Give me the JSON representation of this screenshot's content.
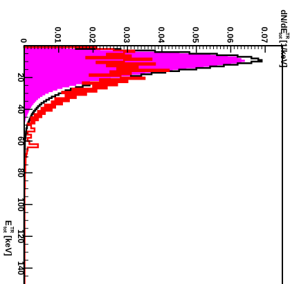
{
  "chart_data": {
    "type": "histogram",
    "orientation": "rotated-90",
    "title": "",
    "x_axis": {
      "label": "E_TR^tot [keV]",
      "label_main": "E",
      "label_sup": "tot",
      "label_sub": "TR",
      "label_unit": "[keV]",
      "range": [
        0,
        150
      ],
      "ticks": [
        20,
        40,
        60,
        80,
        100,
        120,
        140
      ],
      "tick_labels": [
        "20",
        "40",
        "60",
        "80",
        "100",
        "120",
        "140"
      ]
    },
    "y_axis": {
      "label": "dN/dE_TR^tot [1/keV]",
      "label_main": "dN/dE",
      "label_sup": "tot",
      "label_sub": "TR",
      "label_unit": "[1/keV]",
      "range": [
        0,
        0.075
      ],
      "ticks": [
        0,
        0.01,
        0.02,
        0.03,
        0.04,
        0.05,
        0.06,
        0.07
      ],
      "tick_labels": [
        "0",
        "0.01",
        "0.02",
        "0.03",
        "0.04",
        "0.05",
        "0.06",
        "0.07"
      ]
    },
    "grid": false,
    "legend": "none",
    "series": [
      {
        "style": "filled",
        "color": "#ff00ff",
        "bins": [
          0,
          1,
          2,
          3,
          4,
          5,
          6,
          7,
          8,
          9,
          10,
          11,
          12,
          13,
          14,
          15,
          16,
          17,
          18,
          19,
          20,
          21,
          22,
          23,
          24,
          25,
          26,
          27,
          28,
          29,
          30,
          31,
          32,
          33,
          34,
          35,
          36,
          37,
          38,
          39,
          40,
          41,
          42,
          43,
          44,
          45,
          46,
          47
        ],
        "values": [
          0.0,
          0.012,
          0.022,
          0.032,
          0.045,
          0.054,
          0.059,
          0.062,
          0.063,
          0.064,
          0.063,
          0.06,
          0.056,
          0.052,
          0.047,
          0.043,
          0.039,
          0.035,
          0.031,
          0.028,
          0.025,
          0.022,
          0.019,
          0.017,
          0.015,
          0.013,
          0.011,
          0.0095,
          0.0082,
          0.007,
          0.006,
          0.0052,
          0.0045,
          0.0039,
          0.0034,
          0.003,
          0.0026,
          0.0022,
          0.0019,
          0.0016,
          0.0014,
          0.0012,
          0.001,
          0.0008,
          0.0006,
          0.0004,
          0.0003,
          0.0002
        ]
      },
      {
        "style": "step-line",
        "color": "#000000",
        "bins": [
          0,
          1,
          2,
          3,
          4,
          5,
          6,
          7,
          8,
          9,
          10,
          11,
          12,
          13,
          14,
          15,
          16,
          17,
          18,
          19,
          20,
          21,
          22,
          23,
          24,
          25,
          26,
          27,
          28,
          29,
          30,
          31,
          32,
          33,
          34,
          35,
          36,
          37,
          38,
          39,
          40,
          41,
          42,
          43,
          44,
          45,
          46,
          47,
          48,
          49,
          50,
          52,
          54,
          56,
          58,
          60,
          64,
          70,
          80,
          100,
          150
        ],
        "values": [
          0.0,
          0.015,
          0.028,
          0.038,
          0.048,
          0.056,
          0.062,
          0.066,
          0.068,
          0.069,
          0.066,
          0.062,
          0.058,
          0.054,
          0.05,
          0.045,
          0.041,
          0.037,
          0.034,
          0.031,
          0.028,
          0.025,
          0.023,
          0.021,
          0.019,
          0.017,
          0.015,
          0.0135,
          0.012,
          0.011,
          0.01,
          0.009,
          0.008,
          0.0072,
          0.0064,
          0.0057,
          0.005,
          0.0045,
          0.004,
          0.0036,
          0.0032,
          0.0028,
          0.0025,
          0.0022,
          0.002,
          0.0018,
          0.0016,
          0.0014,
          0.0012,
          0.001,
          0.0008,
          0.0006,
          0.0005,
          0.0004,
          0.0003,
          0.0002,
          0.00015,
          0.0001,
          5e-05,
          0.0
        ]
      },
      {
        "style": "step-line",
        "color": "#ff0000",
        "bins": [
          0,
          1,
          2,
          3,
          4,
          5,
          6,
          7,
          8,
          9,
          10,
          11,
          12,
          13,
          14,
          15,
          16,
          17,
          18,
          19,
          20,
          21,
          22,
          23,
          24,
          25,
          26,
          27,
          28,
          29,
          30,
          31,
          32,
          33,
          34,
          35,
          36,
          37,
          38,
          39,
          40,
          41,
          42,
          43,
          44,
          45,
          46,
          47,
          48,
          49,
          50,
          52,
          54,
          56,
          58,
          60,
          62,
          64,
          66,
          68,
          70,
          75,
          80,
          90,
          100,
          150
        ],
        "values": [
          0.0,
          0.021,
          0.026,
          0.032,
          0.029,
          0.024,
          0.031,
          0.018,
          0.037,
          0.029,
          0.021,
          0.038,
          0.024,
          0.033,
          0.027,
          0.042,
          0.025,
          0.031,
          0.019,
          0.028,
          0.035,
          0.022,
          0.03,
          0.017,
          0.027,
          0.02,
          0.024,
          0.014,
          0.021,
          0.011,
          0.018,
          0.012,
          0.015,
          0.009,
          0.013,
          0.008,
          0.011,
          0.006,
          0.009,
          0.005,
          0.008,
          0.004,
          0.006,
          0.003,
          0.005,
          0.002,
          0.004,
          0.002,
          0.003,
          0.001,
          0.002,
          0.003,
          0.001,
          0.002,
          0.001,
          0.0015,
          0.004,
          0.001,
          0.0008,
          0.0006,
          0.0004,
          0.0003,
          0.0002,
          0.0001,
          0.0001
        ]
      }
    ]
  }
}
